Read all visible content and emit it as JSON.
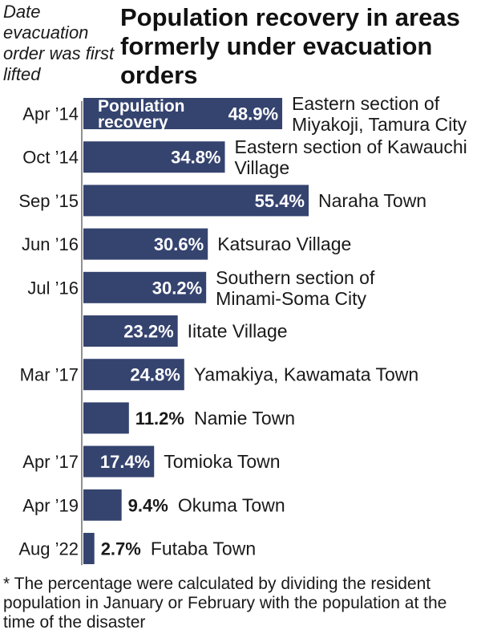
{
  "header": {
    "date_label": "Date evacuation order was first lifted",
    "title": "Population recovery in areas formerly under evacuation orders"
  },
  "footnote": "* The percentage were calculated by dividing the resident population in January or February with the population at the time of the disaster",
  "colors": {
    "bar": "#35436f",
    "bar_text": "#ffffff",
    "divider": "#6b6b6b",
    "text": "#1a1a1a"
  },
  "chart_data": {
    "type": "bar",
    "orientation": "horizontal",
    "title": "Population recovery in areas formerly under evacuation orders",
    "bar_label": "Population recovery",
    "unit": "%",
    "grid": false,
    "categories": [
      "Eastern section of Miyakoji, Tamura City",
      "Eastern section of Kawauchi Village",
      "Naraha Town",
      "Katsurao Village",
      "Southern section of Minami-Soma City",
      "Iitate Village",
      "Yamakiya, Kawamata Town",
      "Namie Town",
      "Tomioka Town",
      "Okuma Town",
      "Futaba Town"
    ],
    "dates": [
      "Apr ’14",
      "Oct ’14",
      "Sep ’15",
      "Jun ’16",
      "Jul ’16",
      "",
      "Mar ’17",
      "",
      "Apr ’17",
      "Apr ’19",
      "Aug ’22"
    ],
    "values": [
      48.9,
      34.8,
      55.4,
      30.6,
      30.2,
      23.2,
      24.8,
      11.2,
      17.4,
      9.4,
      2.7
    ],
    "value_labels": [
      "48.9%",
      "34.8%",
      "55.4%",
      "30.6%",
      "30.2%",
      "23.2%",
      "24.8%",
      "11.2%",
      "17.4%",
      "9.4%",
      "2.7%"
    ],
    "xlim": [
      0,
      55.4
    ]
  }
}
